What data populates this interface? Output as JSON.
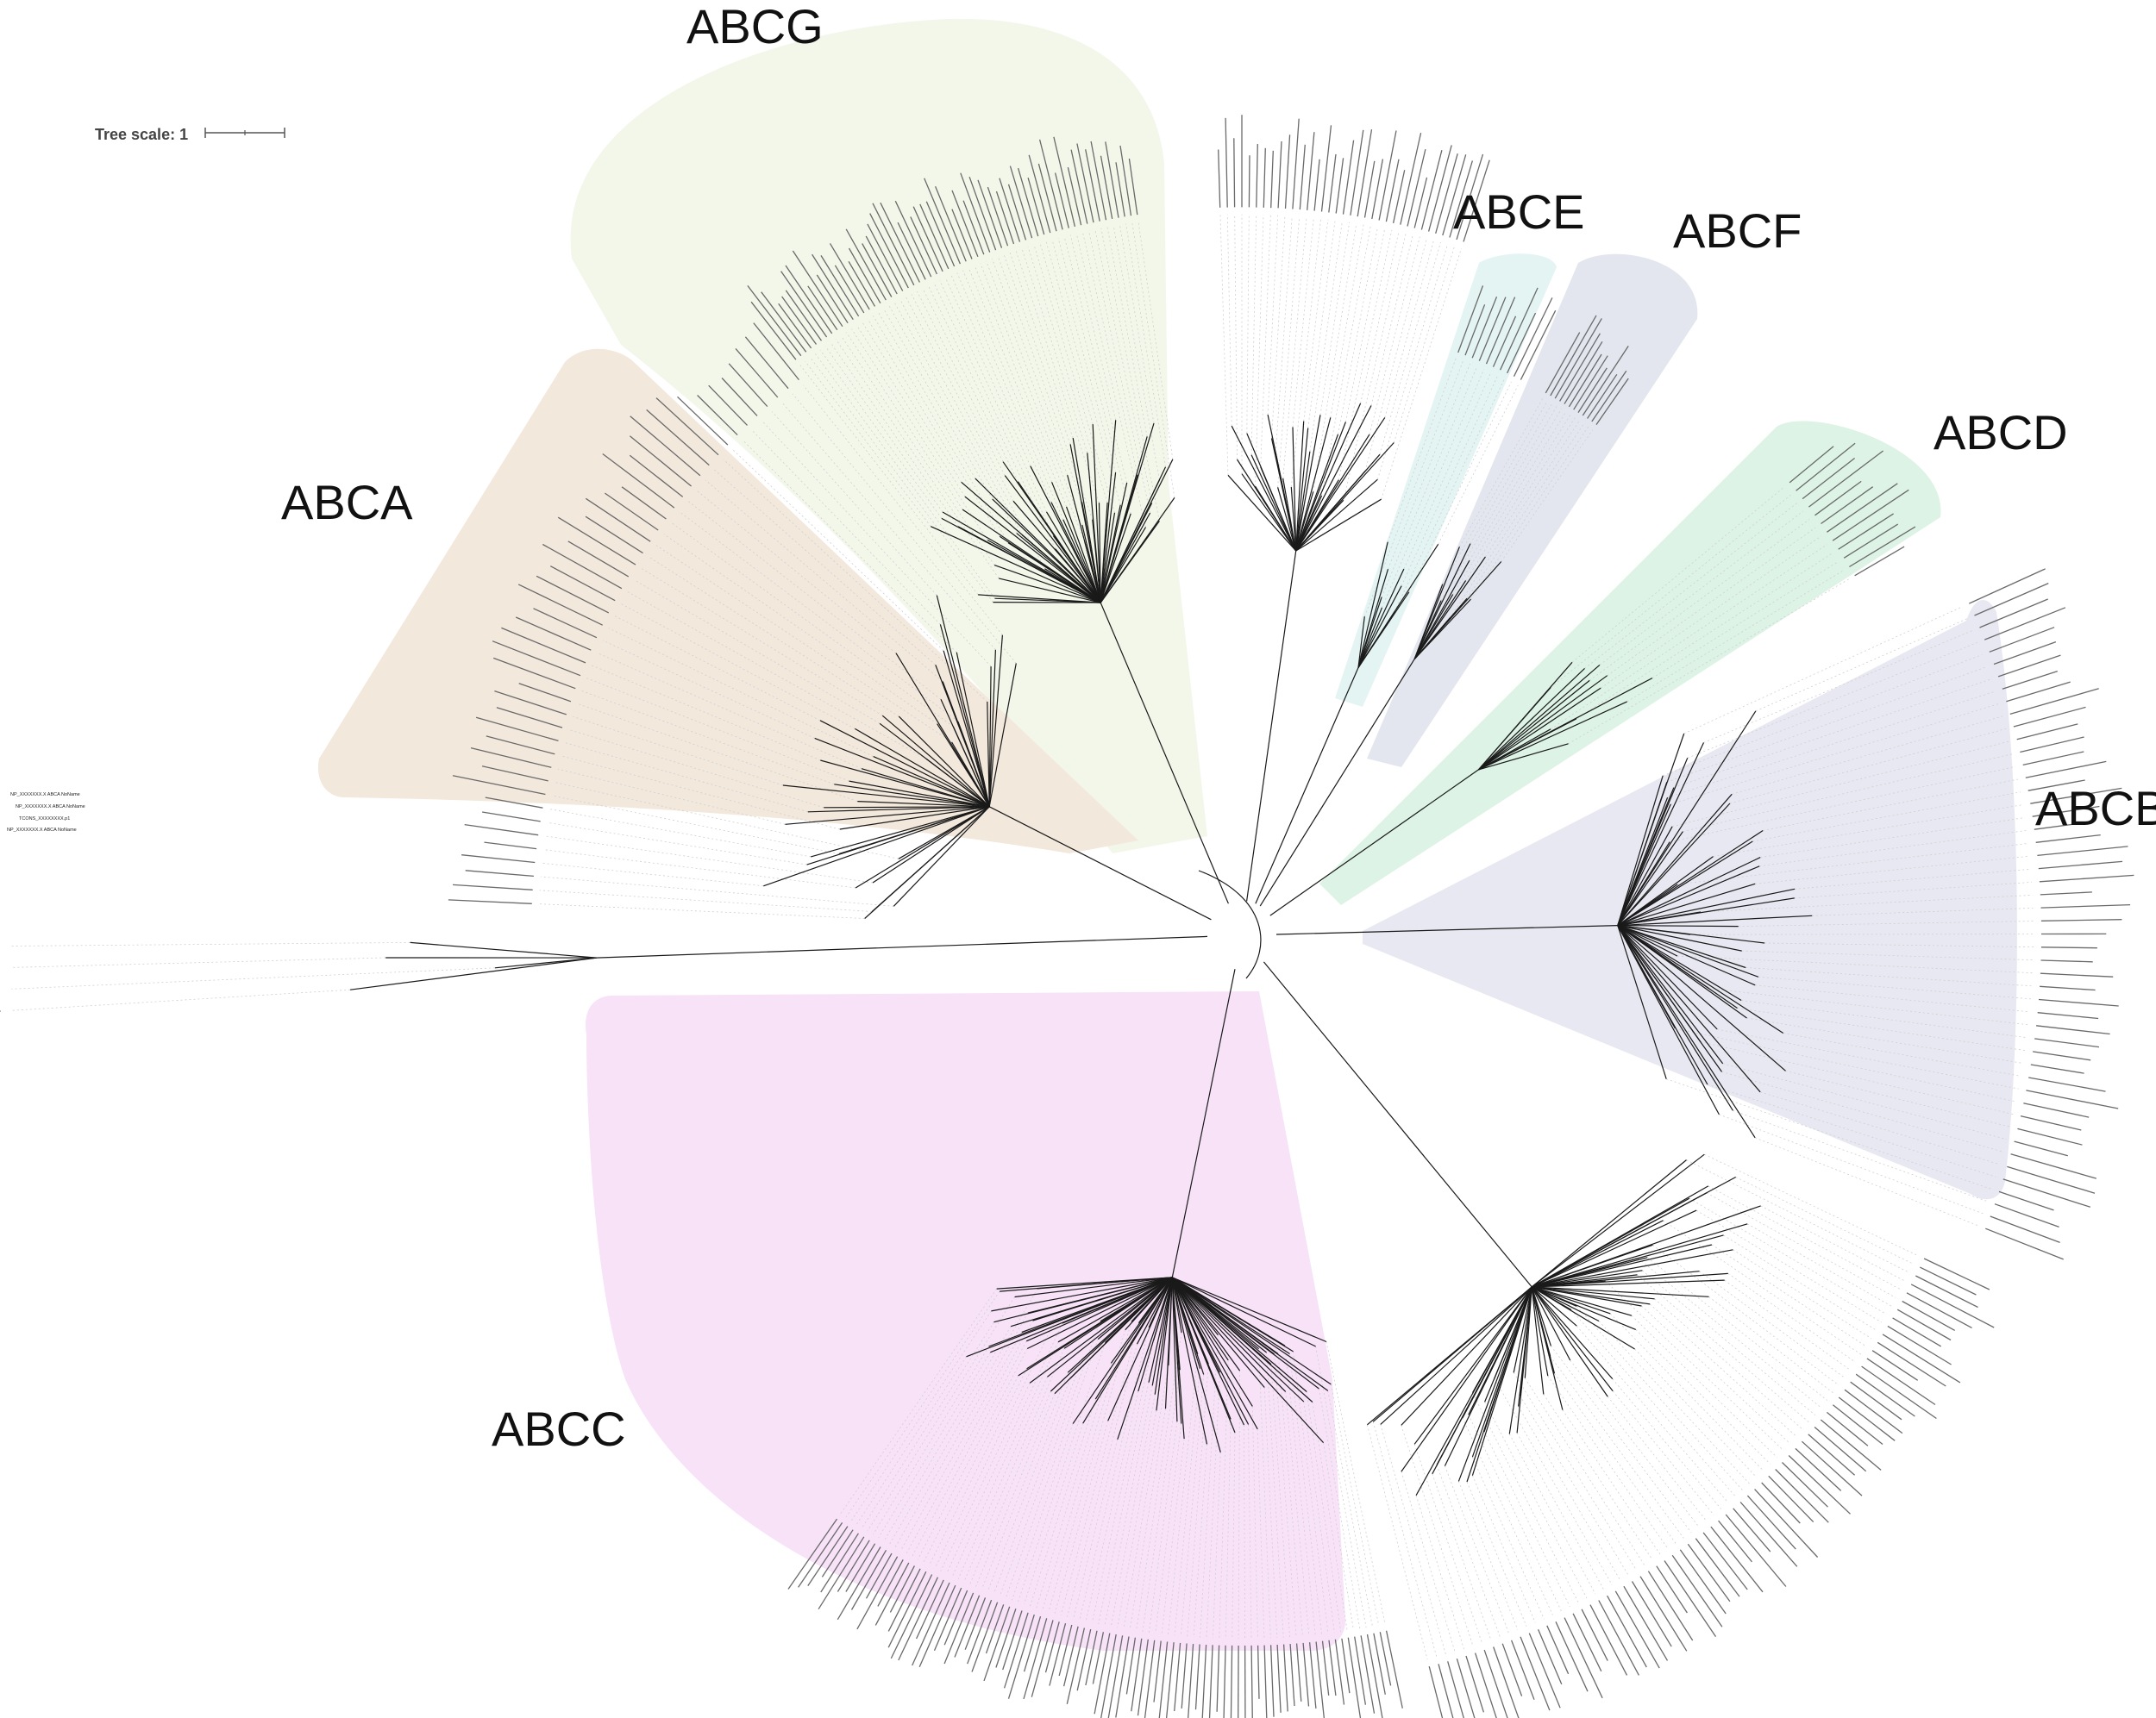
{
  "scale_bar": {
    "label": "Tree scale: 1"
  },
  "clades": [
    {
      "id": "abcg",
      "label": "ABCG",
      "color": "#f2f7ea"
    },
    {
      "id": "abca",
      "label": "ABCA",
      "color": "#f2e8dc"
    },
    {
      "id": "abce",
      "label": "ABCE",
      "color": "#e3f4f3"
    },
    {
      "id": "abcf",
      "label": "ABCF",
      "color": "#e3e6ee"
    },
    {
      "id": "abcd",
      "label": "ABCD",
      "color": "#ddf3e6"
    },
    {
      "id": "abcb",
      "label": "ABCB",
      "color": "#e8e8f2"
    },
    {
      "id": "abcc",
      "label": "ABCC",
      "color": "#f7e2f8"
    }
  ],
  "leaf_labels": {
    "outgroup": [
      "NP_XXXXXXX.X ABCA NoName",
      "NP_XXXXXXX.X ABCA NoName",
      "TCONS_XXXXXXXX.p1",
      "NP_XXXXXXX.X ABCA NoName"
    ]
  }
}
